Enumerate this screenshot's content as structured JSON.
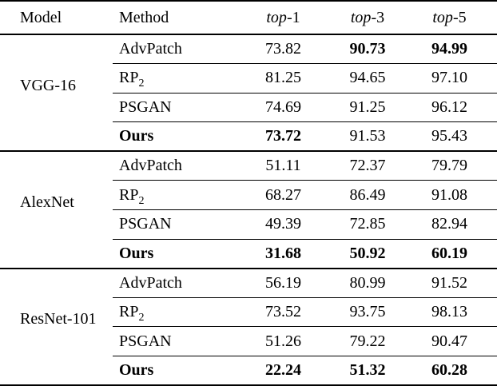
{
  "table": {
    "colors": {
      "text": "#000000",
      "background": "#ffffff",
      "rules": "#000000"
    },
    "headers": {
      "model": "Model",
      "method": "Method",
      "top_cols": [
        {
          "prefix": "top",
          "suffix": "-1"
        },
        {
          "prefix": "top",
          "suffix": "-3"
        },
        {
          "prefix": "top",
          "suffix": "-5"
        }
      ]
    },
    "groups": [
      {
        "model": "VGG-16",
        "rows": [
          {
            "method": "AdvPatch",
            "top1": "73.82",
            "top3": "90.73",
            "top5": "94.99",
            "b3": true,
            "b5": true
          },
          {
            "method": "RP",
            "sub": "2",
            "top1": "81.25",
            "top3": "94.65",
            "top5": "97.10"
          },
          {
            "method": "PSGAN",
            "top1": "74.69",
            "top3": "91.25",
            "top5": "96.12"
          },
          {
            "method": "Ours",
            "bm": true,
            "top1": "73.72",
            "b1": true,
            "top3": "91.53",
            "top5": "95.43"
          }
        ]
      },
      {
        "model": "AlexNet",
        "rows": [
          {
            "method": "AdvPatch",
            "top1": "51.11",
            "top3": "72.37",
            "top5": "79.79"
          },
          {
            "method": "RP",
            "sub": "2",
            "top1": "68.27",
            "top3": "86.49",
            "top5": "91.08"
          },
          {
            "method": "PSGAN",
            "top1": "49.39",
            "top3": "72.85",
            "top5": "82.94"
          },
          {
            "method": "Ours",
            "bm": true,
            "top1": "31.68",
            "b1": true,
            "top3": "50.92",
            "b3": true,
            "top5": "60.19",
            "b5": true
          }
        ]
      },
      {
        "model": "ResNet-101",
        "rows": [
          {
            "method": "AdvPatch",
            "top1": "56.19",
            "top3": "80.99",
            "top5": "91.52"
          },
          {
            "method": "RP",
            "sub": "2",
            "top1": "73.52",
            "top3": "93.75",
            "top5": "98.13"
          },
          {
            "method": "PSGAN",
            "top1": "51.26",
            "top3": "79.22",
            "top5": "90.47"
          },
          {
            "method": "Ours",
            "bm": true,
            "top1": "22.24",
            "b1": true,
            "top3": "51.32",
            "b3": true,
            "top5": "60.28",
            "b5": true
          }
        ]
      }
    ]
  }
}
